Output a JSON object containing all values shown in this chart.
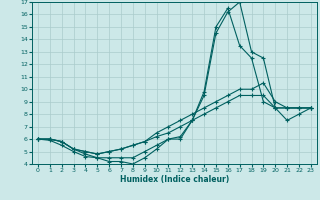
{
  "title": "",
  "xlabel": "Humidex (Indice chaleur)",
  "xlim": [
    -0.5,
    23.5
  ],
  "ylim": [
    4,
    17
  ],
  "yticks": [
    4,
    5,
    6,
    7,
    8,
    9,
    10,
    11,
    12,
    13,
    14,
    15,
    16,
    17
  ],
  "xticks": [
    0,
    1,
    2,
    3,
    4,
    5,
    6,
    7,
    8,
    9,
    10,
    11,
    12,
    13,
    14,
    15,
    16,
    17,
    18,
    19,
    20,
    21,
    22,
    23
  ],
  "bg_color": "#cce8e8",
  "grid_color": "#aacccc",
  "line_color": "#006060",
  "series": [
    {
      "x": [
        0,
        1,
        2,
        3,
        4,
        5,
        6,
        7,
        8,
        9,
        10,
        11,
        12,
        13,
        14,
        15,
        16,
        17,
        18,
        19,
        20,
        21,
        22,
        23
      ],
      "y": [
        6,
        6,
        5.8,
        5.2,
        4.8,
        4.5,
        4.2,
        4.2,
        4.0,
        4.5,
        5.2,
        6.0,
        6.0,
        7.5,
        9.5,
        14.5,
        16.2,
        17.0,
        13.0,
        12.5,
        8.5,
        8.5,
        8.5,
        8.5
      ]
    },
    {
      "x": [
        0,
        1,
        2,
        3,
        4,
        5,
        6,
        7,
        8,
        9,
        10,
        11,
        12,
        13,
        14,
        15,
        16,
        17,
        18,
        19,
        20,
        21,
        22,
        23
      ],
      "y": [
        6,
        5.9,
        5.5,
        5.0,
        4.6,
        4.5,
        4.5,
        4.5,
        4.5,
        5.0,
        5.5,
        6.0,
        6.2,
        7.5,
        9.8,
        15.0,
        16.5,
        13.5,
        12.5,
        9.0,
        8.5,
        8.5,
        8.5,
        8.5
      ]
    },
    {
      "x": [
        0,
        1,
        2,
        3,
        4,
        5,
        6,
        7,
        8,
        9,
        10,
        11,
        12,
        13,
        14,
        15,
        16,
        17,
        18,
        19,
        20,
        21,
        22,
        23
      ],
      "y": [
        6,
        6,
        5.8,
        5.2,
        5.0,
        4.8,
        5.0,
        5.2,
        5.5,
        5.8,
        6.5,
        7.0,
        7.5,
        8.0,
        8.5,
        9.0,
        9.5,
        10.0,
        10.0,
        10.5,
        9.0,
        8.5,
        8.5,
        8.5
      ]
    },
    {
      "x": [
        0,
        1,
        2,
        3,
        4,
        5,
        6,
        7,
        8,
        9,
        10,
        11,
        12,
        13,
        14,
        15,
        16,
        17,
        18,
        19,
        20,
        21,
        22,
        23
      ],
      "y": [
        6,
        6,
        5.8,
        5.2,
        5.0,
        4.8,
        5.0,
        5.2,
        5.5,
        5.8,
        6.2,
        6.5,
        7.0,
        7.5,
        8.0,
        8.5,
        9.0,
        9.5,
        9.5,
        9.5,
        8.5,
        7.5,
        8.0,
        8.5
      ]
    }
  ]
}
